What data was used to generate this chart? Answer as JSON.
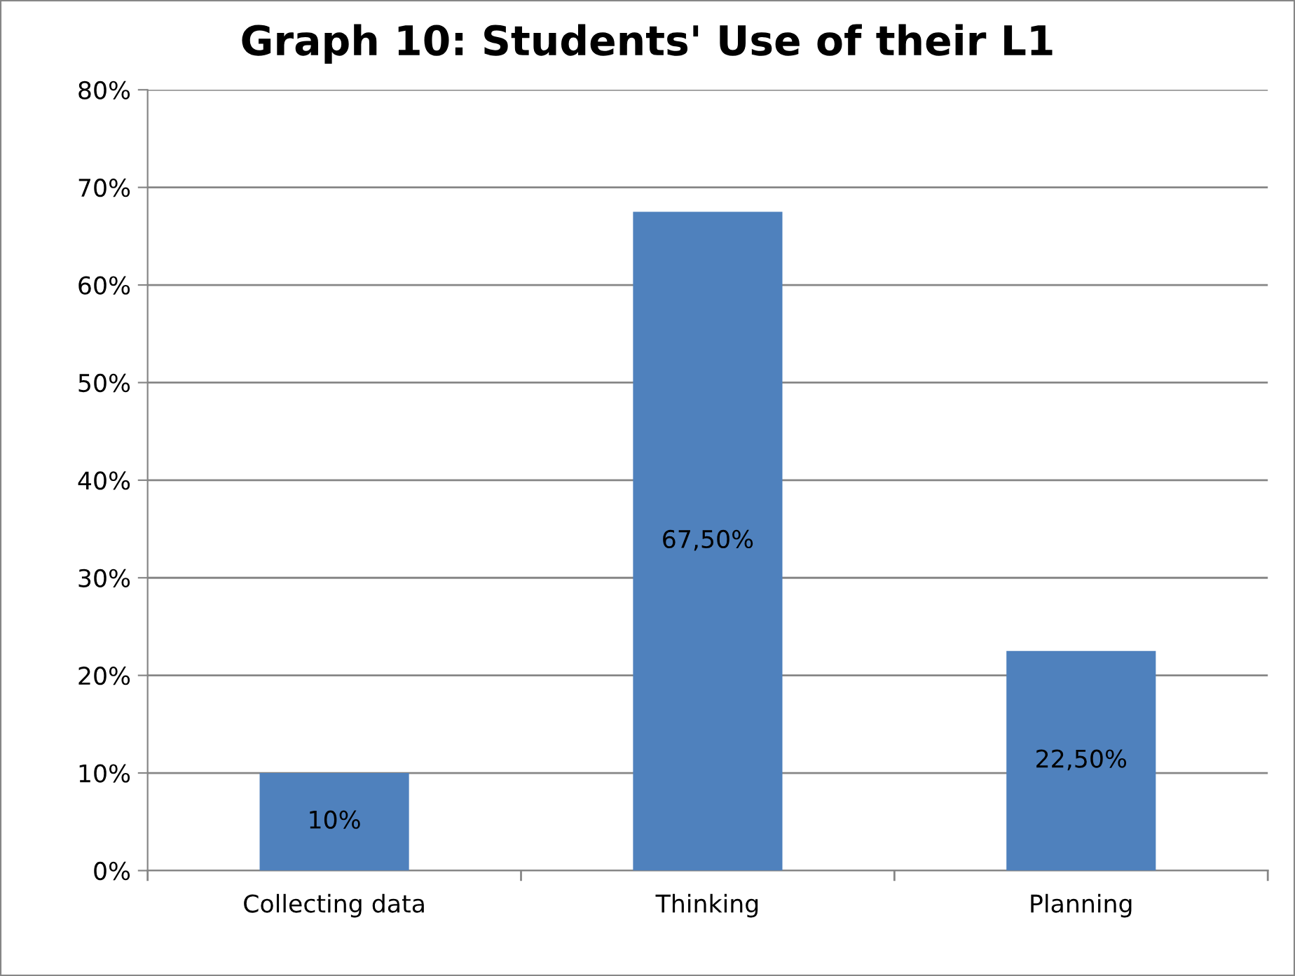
{
  "chart_data": {
    "type": "bar",
    "title": "Graph 10: Students' Use of their L1",
    "categories": [
      "Collecting data",
      "Thinking",
      "Planning"
    ],
    "values": [
      10,
      67.5,
      22.5
    ],
    "color": "#4f81bd",
    "value_labels": [
      "10%",
      "67,50%",
      "22,50%"
    ],
    "ylim": [
      0,
      80
    ],
    "yticks": [
      {
        "value": 0,
        "label": "0%"
      },
      {
        "value": 10,
        "label": "10%"
      },
      {
        "value": 20,
        "label": "20%"
      },
      {
        "value": 30,
        "label": "30%"
      },
      {
        "value": 40,
        "label": "40%"
      },
      {
        "value": 50,
        "label": "50%"
      },
      {
        "value": 60,
        "label": "60%"
      },
      {
        "value": 70,
        "label": "70%"
      },
      {
        "value": 80,
        "label": "80%"
      }
    ],
    "grid": "y",
    "legend": false
  }
}
